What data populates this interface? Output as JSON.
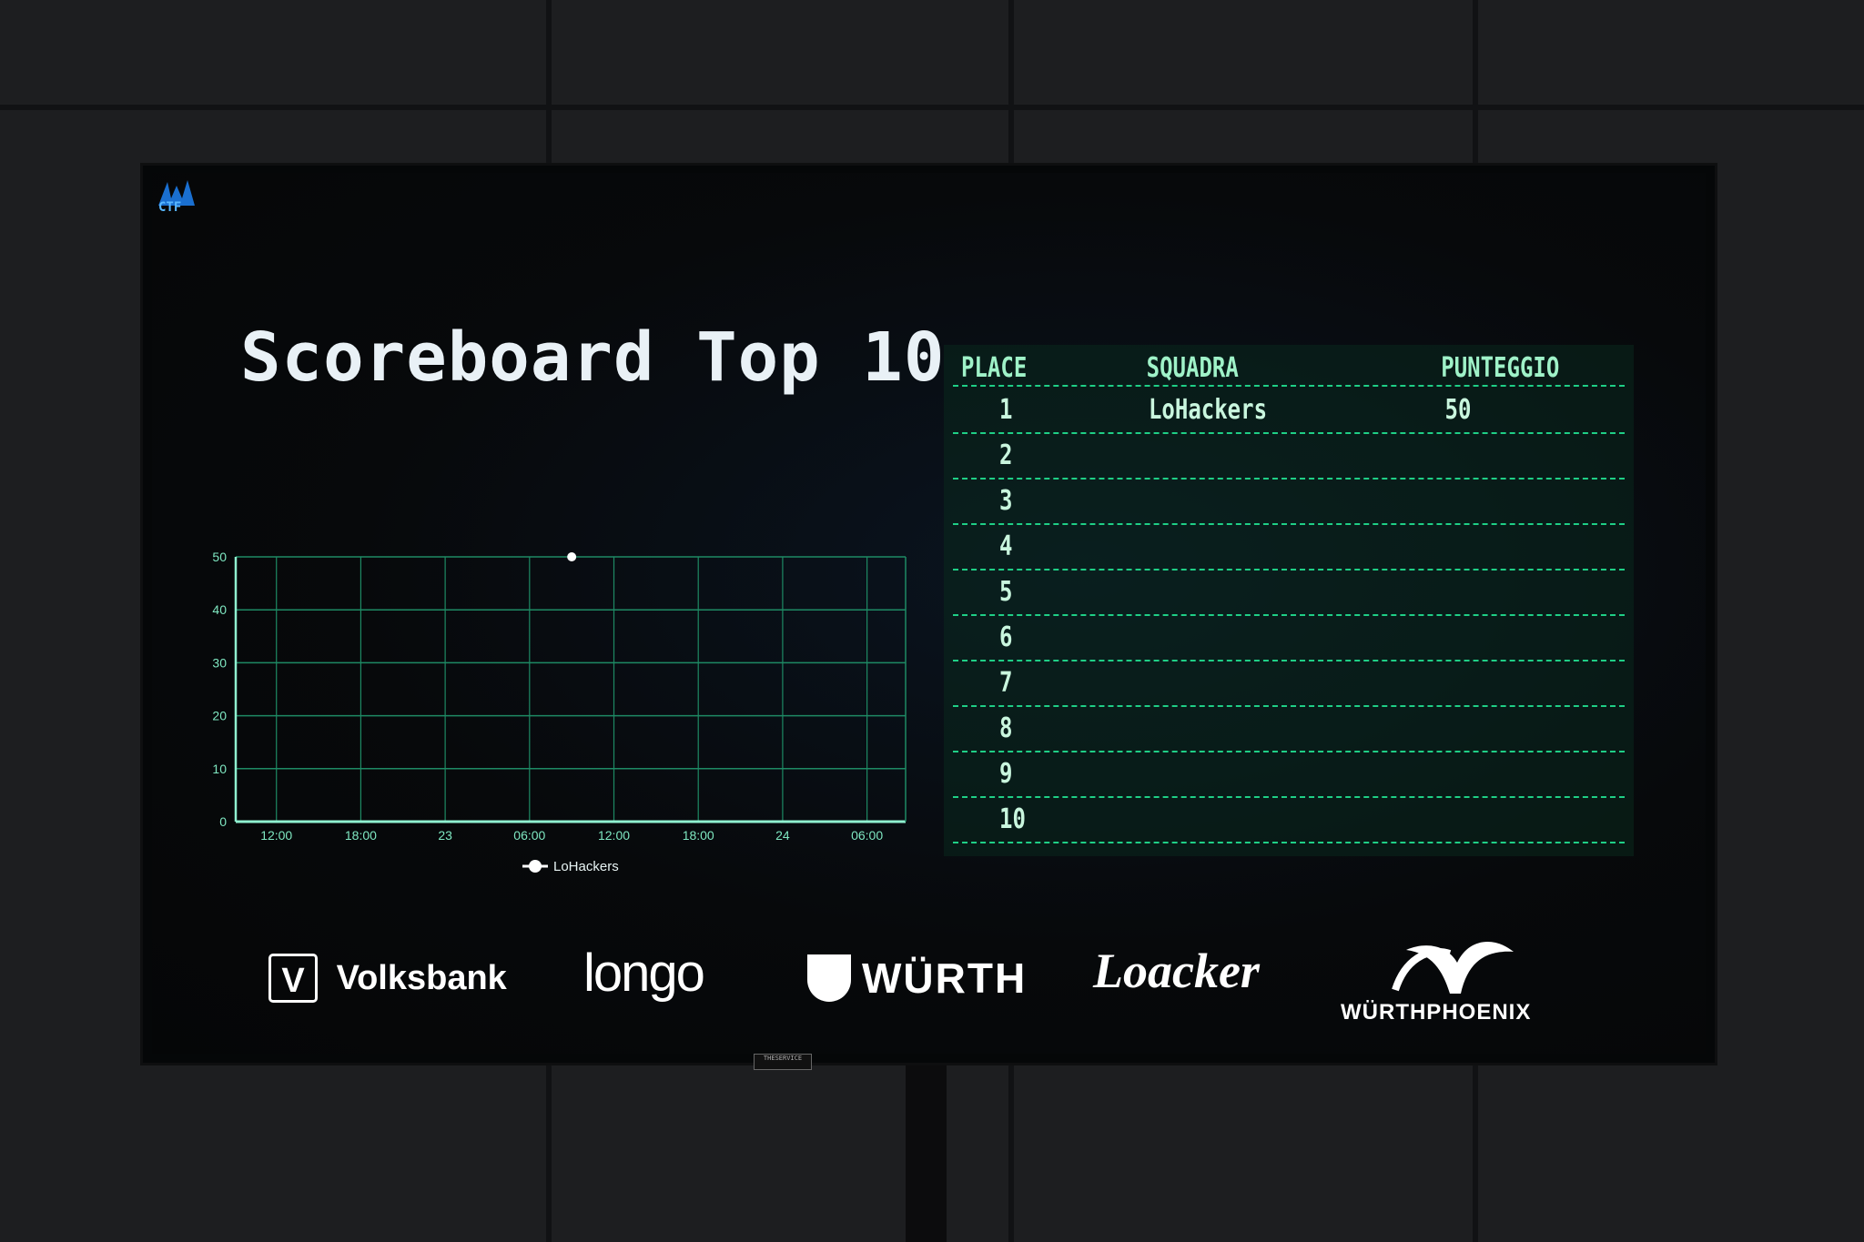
{
  "title": "Scoreboard Top 10",
  "logo_text": "CTF",
  "colors": {
    "accent": "#1fcf86",
    "text": "#9ff2c8",
    "title": "#e9f1f6",
    "grid": "#1e8a64",
    "point": "#ffffff"
  },
  "chart_data": {
    "type": "line",
    "x_tick_labels": [
      "12:00",
      "18:00",
      "23",
      "06:00",
      "12:00",
      "18:00",
      "24",
      "06:00"
    ],
    "y_ticks": [
      0,
      10,
      20,
      30,
      40,
      50
    ],
    "ylim": [
      0,
      50
    ],
    "grid": true,
    "legend_position": "bottom",
    "series": [
      {
        "name": "LoHackers",
        "points": [
          {
            "x": "23 09:00",
            "y": 50
          }
        ]
      }
    ]
  },
  "table": {
    "headers": {
      "place": "PLACE",
      "team": "SQUADRA",
      "score": "PUNTEGGIO"
    },
    "rows": [
      {
        "place": "1",
        "team": "LoHackers",
        "score": "50"
      },
      {
        "place": "2",
        "team": "",
        "score": ""
      },
      {
        "place": "3",
        "team": "",
        "score": ""
      },
      {
        "place": "4",
        "team": "",
        "score": ""
      },
      {
        "place": "5",
        "team": "",
        "score": ""
      },
      {
        "place": "6",
        "team": "",
        "score": ""
      },
      {
        "place": "7",
        "team": "",
        "score": ""
      },
      {
        "place": "8",
        "team": "",
        "score": ""
      },
      {
        "place": "9",
        "team": "",
        "score": ""
      },
      {
        "place": "10",
        "team": "",
        "score": ""
      }
    ]
  },
  "sponsors": {
    "volksbank": "Volksbank",
    "volksbank_mark": "V",
    "longo": "longo",
    "wurth": "WÜRTH",
    "loacker": "Loacker",
    "wurthphoenix": "WÜRTHPHOENIX"
  },
  "stand_label": "THESERVICE"
}
